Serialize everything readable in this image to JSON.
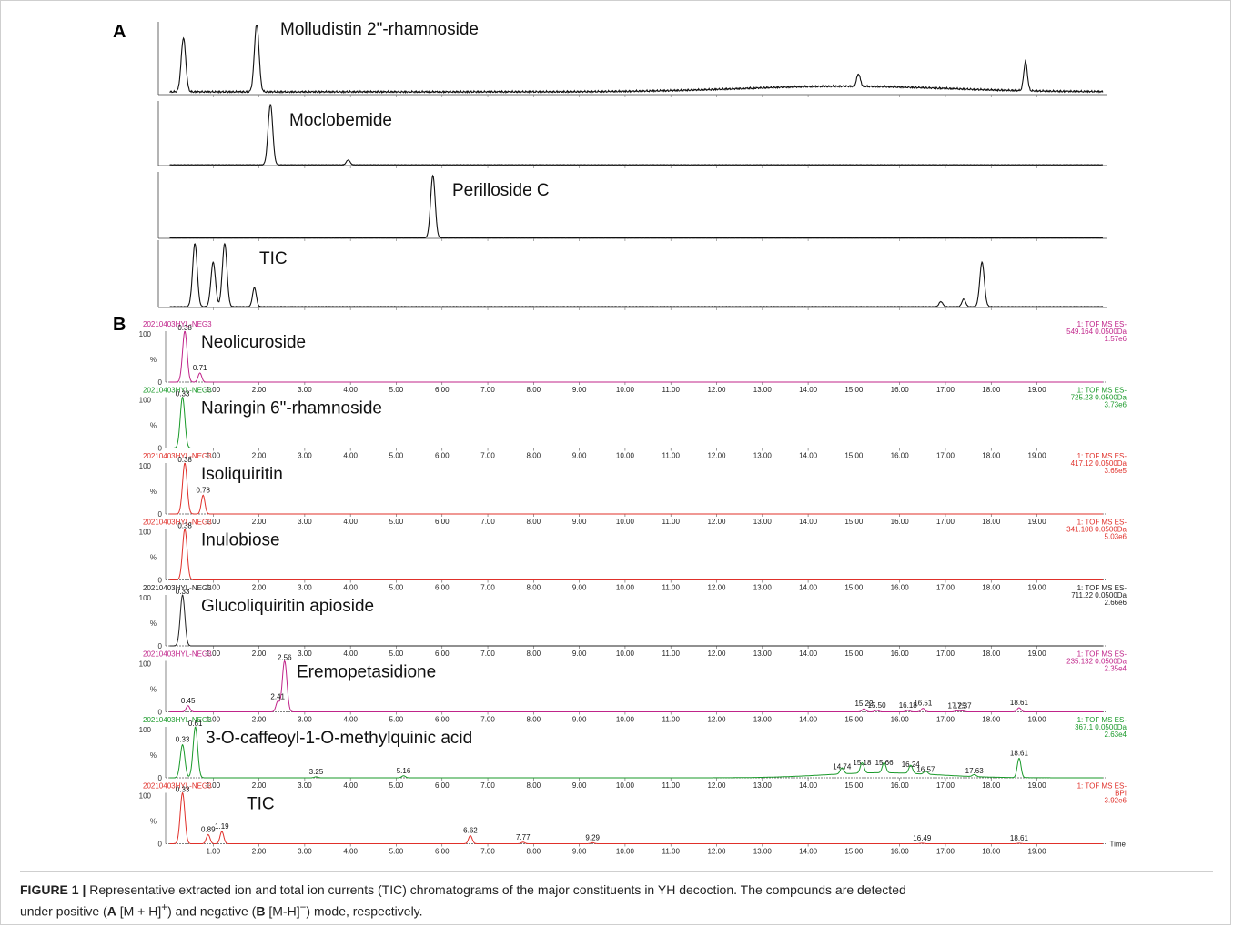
{
  "panel_A": {
    "letter": "A",
    "traces": [
      {
        "label": "Molludistin 2\"-rhamnoside"
      },
      {
        "label": "Moclobemide"
      },
      {
        "label": "Perilloside C"
      },
      {
        "label": "TIC"
      }
    ]
  },
  "panel_B": {
    "letter": "B",
    "x_axis_label": "Time",
    "x_tick_labels": [
      "1.00",
      "2.00",
      "3.00",
      "4.00",
      "5.00",
      "6.00",
      "7.00",
      "8.00",
      "9.00",
      "10.00",
      "11.00",
      "12.00",
      "13.00",
      "14.00",
      "15.00",
      "16.00",
      "17.00",
      "18.00",
      "19.00"
    ],
    "traces": [
      {
        "label": "Neolicuroside",
        "sample": "20210403HYL-NEG3",
        "info": [
          "1: TOF MS ES-",
          "549.164 0.0500Da",
          "1.57e6"
        ],
        "color": "#c0248a"
      },
      {
        "label": "Naringin 6\"-rhamnoside",
        "sample": "20210403HYL-NEG3",
        "info": [
          "1: TOF MS ES-",
          "725.23 0.0500Da",
          "3.73e6"
        ],
        "color": "#1a9a2a"
      },
      {
        "label": "Isoliquiritin",
        "sample": "20210403HYL-NEG3",
        "info": [
          "1: TOF MS ES-",
          "417.12 0.0500Da",
          "3.65e5"
        ],
        "color": "#e0302a"
      },
      {
        "label": "Inulobiose",
        "sample": "20210403HYL-NEG3",
        "info": [
          "1: TOF MS ES-",
          "341.108 0.0500Da",
          "5.03e6"
        ],
        "color": "#e0302a"
      },
      {
        "label": "Glucoliquiritin apioside",
        "sample": "20210403HYL-NEG3",
        "info": [
          "1: TOF MS ES-",
          "711.22 0.0500Da",
          "2.66e6"
        ],
        "color": "#222222"
      },
      {
        "label": "Eremopetasidione",
        "sample": "20210403HYL-NEG3",
        "info": [
          "1: TOF MS ES-",
          "235.132 0.0500Da",
          "2.35e4"
        ],
        "color": "#c0248a"
      },
      {
        "label": "3-O-caffeoyl-1-O-methylquinic acid",
        "sample": "20210403HYL-NEG3",
        "info": [
          "1: TOF MS ES-",
          "367.1 0.0500Da",
          "2.63e4"
        ],
        "color": "#1a9a2a"
      },
      {
        "label": "TIC",
        "sample": "20210403HYL-NEG3",
        "info": [
          "1: TOF MS ES-",
          "BPI",
          "3.92e6"
        ],
        "color": "#e0302a"
      }
    ]
  },
  "caption": {
    "prefix": "FIGURE 1 |",
    "line1": " Representative extracted ion and total ion currents (TIC) chromatograms of the major constituents in YH decoction. The compounds are detected",
    "line2_a": "under positive (",
    "line2_A": "A",
    "line2_b": " [M + H]",
    "line2_sup1": "+",
    "line2_c": ") and negative (",
    "line2_B": "B",
    "line2_d": " [M-H]",
    "line2_sup2": "−",
    "line2_e": ") mode, respectively."
  },
  "chart_data": [
    {
      "type": "line",
      "panel": "A",
      "x_range": [
        0,
        20.5
      ],
      "series": [
        {
          "name": "Molludistin 2\"-rhamnoside",
          "peaks": [
            {
              "x": 0.35,
              "y": 78
            },
            {
              "x": 1.95,
              "y": 100
            },
            {
              "x": 15.1,
              "y": 18
            },
            {
              "x": 18.75,
              "y": 42
            }
          ],
          "baseline": 3
        },
        {
          "name": "Moclobemide",
          "peaks": [
            {
              "x": 2.25,
              "y": 100
            },
            {
              "x": 3.95,
              "y": 8
            }
          ],
          "baseline": 1
        },
        {
          "name": "Perilloside C",
          "peaks": [
            {
              "x": 5.8,
              "y": 100
            }
          ],
          "baseline": 0.5
        },
        {
          "name": "TIC",
          "peaks": [
            {
              "x": 0.6,
              "y": 100
            },
            {
              "x": 1.0,
              "y": 70
            },
            {
              "x": 1.25,
              "y": 100
            },
            {
              "x": 1.9,
              "y": 30
            },
            {
              "x": 16.9,
              "y": 8
            },
            {
              "x": 17.4,
              "y": 12
            },
            {
              "x": 17.8,
              "y": 70
            }
          ],
          "baseline": 1
        }
      ]
    },
    {
      "type": "line",
      "panel": "B",
      "x_range": [
        0,
        20.5
      ],
      "y_range": [
        0,
        100
      ],
      "series": [
        {
          "name": "Neolicuroside",
          "peaks": [
            {
              "x": 0.38,
              "y": 100,
              "label": "0.38"
            },
            {
              "x": 0.71,
              "y": 18,
              "label": "0.71"
            }
          ]
        },
        {
          "name": "Naringin 6\"-rhamnoside",
          "peaks": [
            {
              "x": 0.33,
              "y": 100,
              "label": "0.33"
            }
          ]
        },
        {
          "name": "Isoliquiritin",
          "peaks": [
            {
              "x": 0.38,
              "y": 100,
              "label": "0.38"
            },
            {
              "x": 0.78,
              "y": 37,
              "label": "0.78"
            }
          ]
        },
        {
          "name": "Inulobiose",
          "peaks": [
            {
              "x": 0.38,
              "y": 100,
              "label": "0.38"
            }
          ]
        },
        {
          "name": "Glucoliquiritin apioside",
          "peaks": [
            {
              "x": 0.33,
              "y": 100,
              "label": "0.33"
            }
          ]
        },
        {
          "name": "Eremopetasidione",
          "peaks": [
            {
              "x": 0.45,
              "y": 12,
              "label": "0.45"
            },
            {
              "x": 2.41,
              "y": 20,
              "label": "2.41"
            },
            {
              "x": 2.56,
              "y": 100,
              "label": "2.56"
            },
            {
              "x": 15.22,
              "y": 6,
              "label": "15.22"
            },
            {
              "x": 15.5,
              "y": 3,
              "label": "15.50"
            },
            {
              "x": 16.18,
              "y": 3,
              "label": "16.18"
            },
            {
              "x": 16.51,
              "y": 7,
              "label": "16.51"
            },
            {
              "x": 17.25,
              "y": 2,
              "label": "17.25"
            },
            {
              "x": 17.37,
              "y": 2,
              "label": "17.37"
            },
            {
              "x": 18.61,
              "y": 8,
              "label": "18.61"
            }
          ]
        },
        {
          "name": "3-O-caffeoyl-1-O-methylquinic acid",
          "peaks": [
            {
              "x": 0.33,
              "y": 65,
              "label": "0.33"
            },
            {
              "x": 0.61,
              "y": 100,
              "label": "0.61"
            },
            {
              "x": 3.25,
              "y": 2,
              "label": "3.25"
            },
            {
              "x": 5.16,
              "y": 4,
              "label": "5.16"
            },
            {
              "x": 14.74,
              "y": 12,
              "label": "14.74"
            },
            {
              "x": 15.18,
              "y": 20,
              "label": "15.18"
            },
            {
              "x": 15.66,
              "y": 20,
              "label": "15.66"
            },
            {
              "x": 16.24,
              "y": 16,
              "label": "16.24"
            },
            {
              "x": 16.57,
              "y": 6,
              "label": "16.57"
            },
            {
              "x": 17.63,
              "y": 4,
              "label": "17.63"
            },
            {
              "x": 18.61,
              "y": 38,
              "label": "18.61"
            }
          ]
        },
        {
          "name": "TIC",
          "peaks": [
            {
              "x": 0.33,
              "y": 100,
              "label": "0.33"
            },
            {
              "x": 0.89,
              "y": 18,
              "label": "0.89"
            },
            {
              "x": 1.19,
              "y": 24,
              "label": "1.19"
            },
            {
              "x": 6.62,
              "y": 16,
              "label": "6.62"
            },
            {
              "x": 7.77,
              "y": 3,
              "label": "7.77"
            },
            {
              "x": 9.29,
              "y": 2,
              "label": "9.29"
            },
            {
              "x": 16.49,
              "y": 1,
              "label": "16.49"
            },
            {
              "x": 18.61,
              "y": 1,
              "label": "18.61"
            }
          ]
        }
      ]
    }
  ]
}
